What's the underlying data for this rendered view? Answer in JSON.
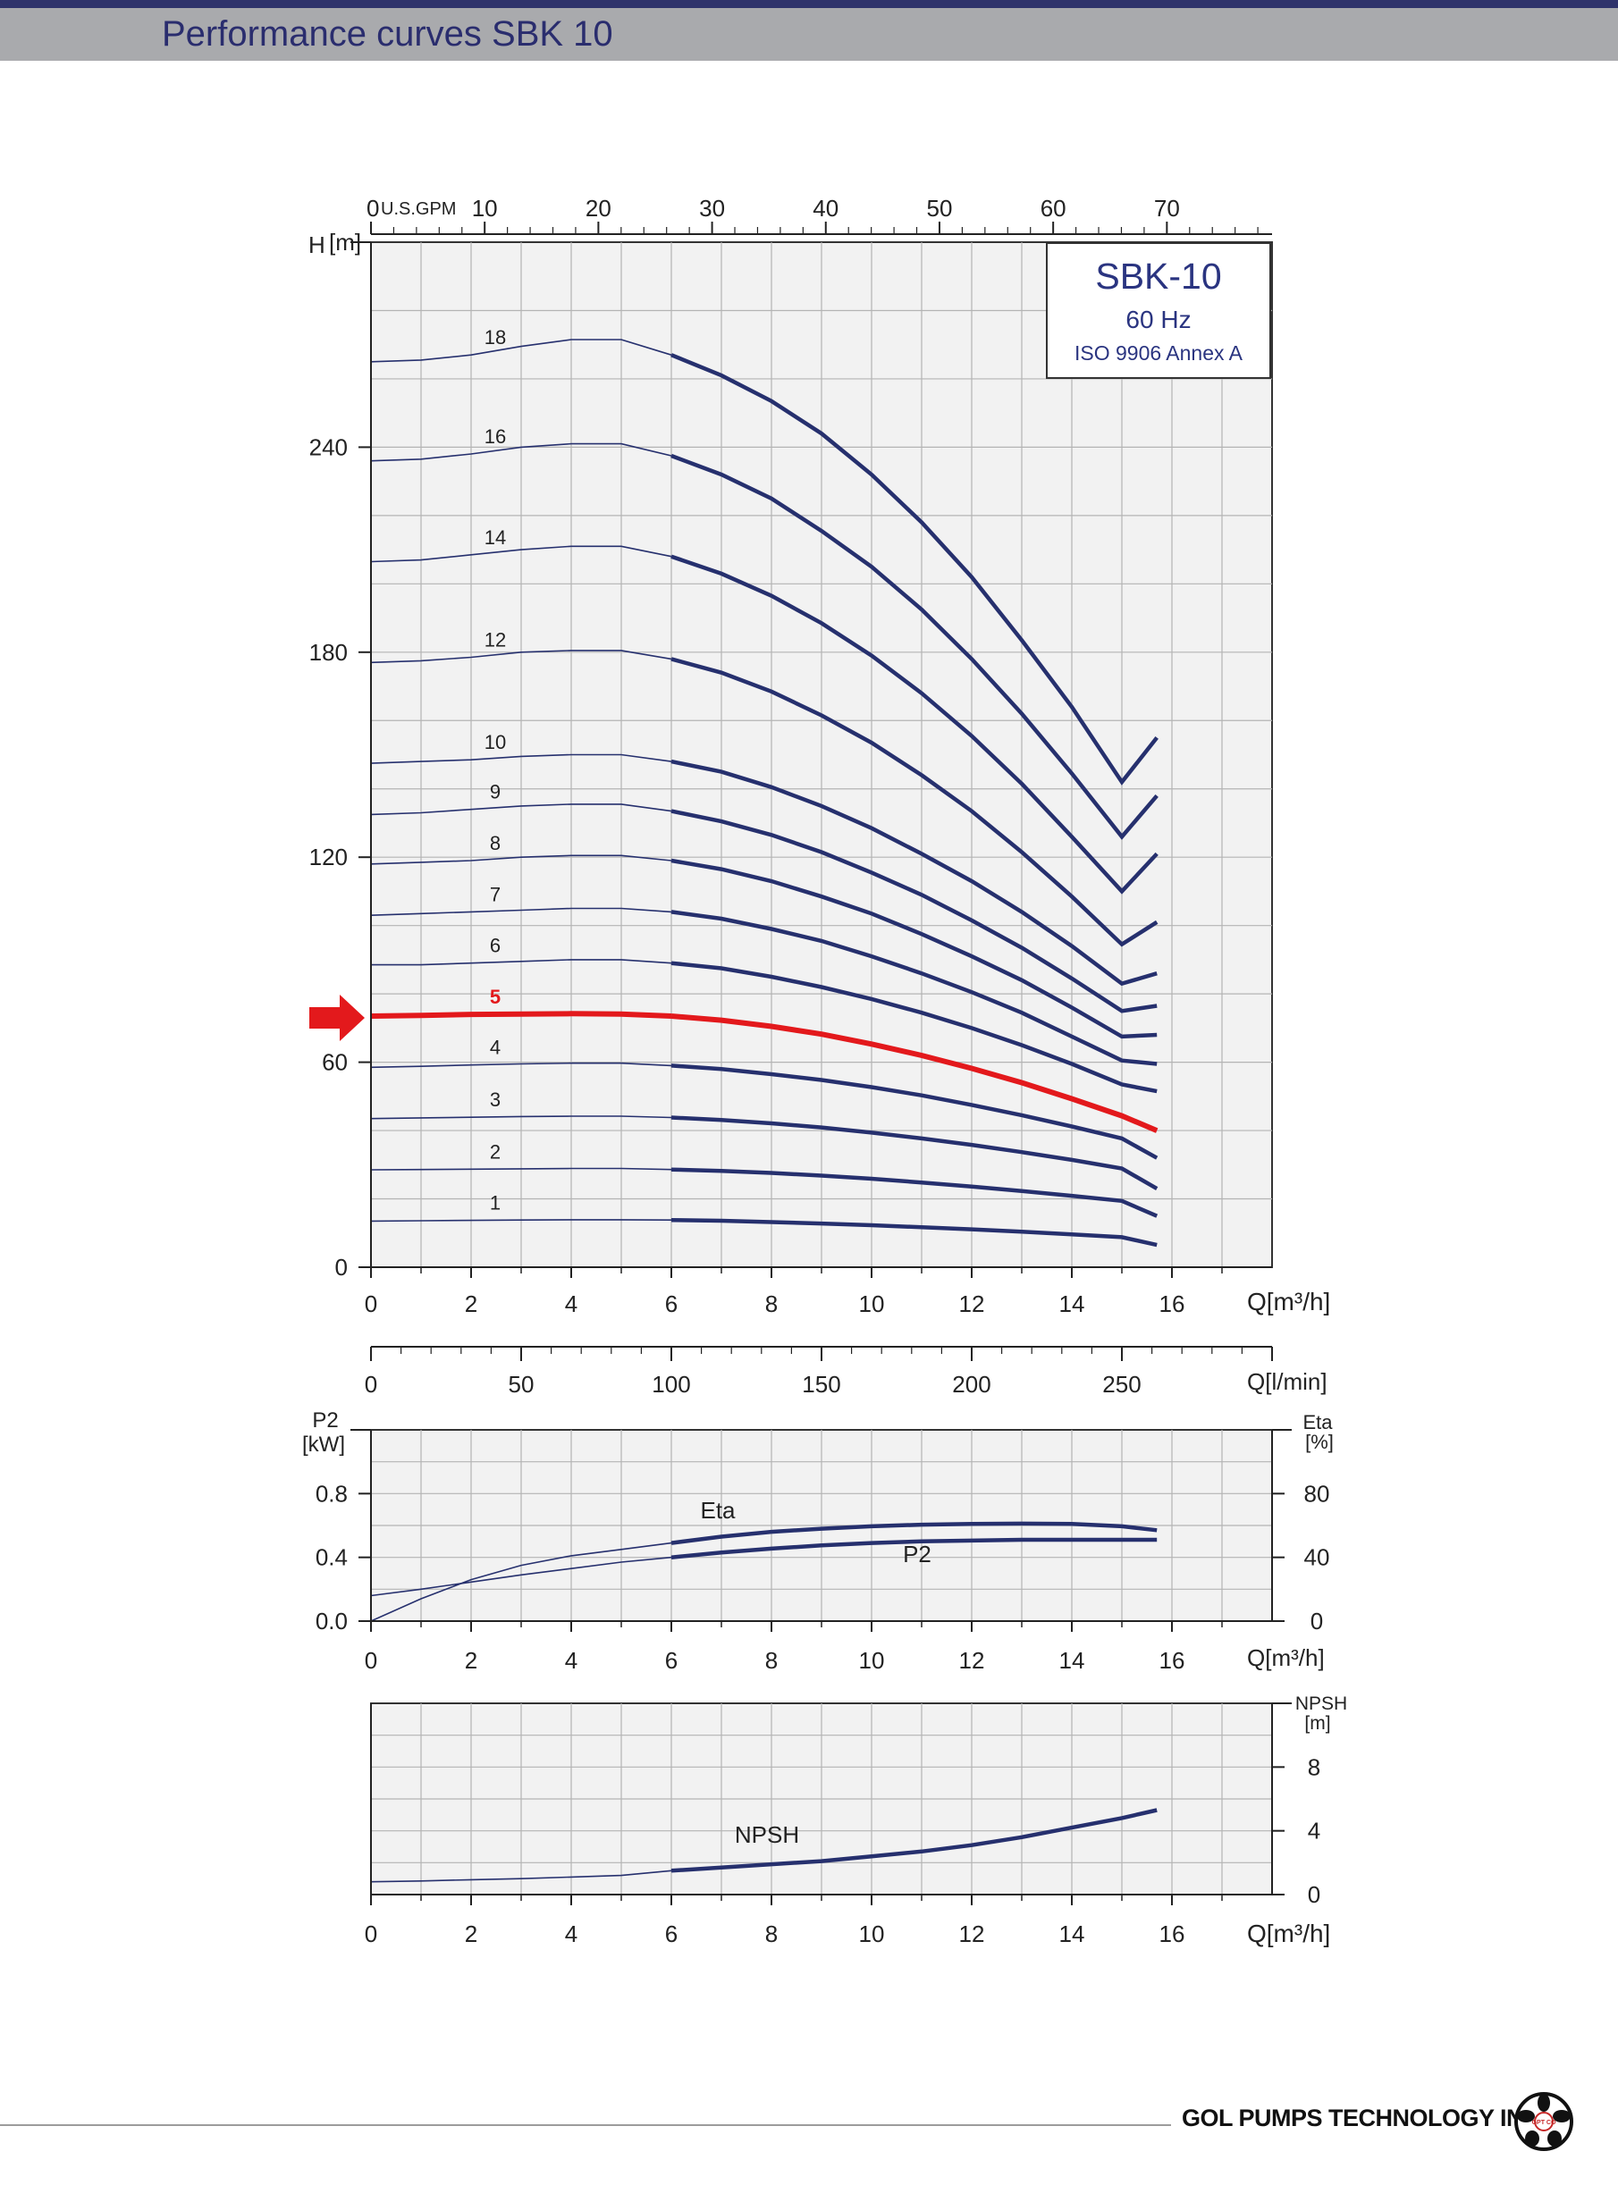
{
  "page": {
    "title": "Performance curves SBK 10"
  },
  "footer": {
    "company": "GOL PUMPS TECHNOLOGY INC",
    "logo_text": "GPT CO"
  },
  "colors": {
    "curve": "#26306e",
    "highlight": "#e3191c",
    "grid": "#b4b4b4",
    "plot_bg": "#f2f2f2",
    "text": "#222222",
    "legend_text": "#2a3480"
  },
  "chart_data": [
    {
      "type": "line",
      "legend": {
        "title": "SBK-10",
        "frequency": "60 Hz",
        "standard": "ISO 9906 Annex A"
      },
      "x_axis": {
        "label": "Q[m³/h]",
        "range": [
          0,
          18
        ],
        "ticks": [
          0,
          2,
          4,
          6,
          8,
          10,
          12,
          14,
          16
        ],
        "tick_labels": [
          "0",
          "2",
          "4",
          "6",
          "8",
          "10",
          "12",
          "14",
          "16"
        ]
      },
      "x_axis_top": {
        "unit": "U.S.GPM",
        "range": [
          0,
          79.25
        ],
        "ticks": [
          0,
          10,
          20,
          30,
          40,
          50,
          60,
          70
        ],
        "tick_labels": [
          "0",
          "10",
          "20",
          "30",
          "40",
          "50",
          "60",
          "70"
        ]
      },
      "y_axis": {
        "label": "H",
        "unit": "[m]",
        "range": [
          0,
          300
        ],
        "ticks": [
          0,
          60,
          120,
          180,
          240
        ],
        "tick_labels": [
          "0",
          "60",
          "120",
          "180",
          "240"
        ]
      },
      "grid": true,
      "highlight_stage": "5",
      "q": [
        0,
        1,
        2,
        3,
        4,
        5,
        6,
        7,
        8,
        9,
        10,
        11,
        12,
        13,
        14,
        15,
        15.7
      ],
      "operating_range_start": 6,
      "series": [
        {
          "name": "18",
          "values": [
            265,
            265.5,
            267,
            269.5,
            271.5,
            271.5,
            267,
            261,
            253.5,
            244,
            232,
            218,
            202,
            183.5,
            164,
            142,
            155
          ]
        },
        {
          "name": "16",
          "values": [
            236,
            236.5,
            238,
            240,
            241,
            241,
            237.5,
            232,
            225,
            215.5,
            205,
            192.5,
            178,
            162,
            144.5,
            126,
            138
          ]
        },
        {
          "name": "14",
          "values": [
            206.5,
            207,
            208.5,
            210,
            211,
            211,
            208,
            203,
            196.5,
            188.5,
            179,
            168,
            155.5,
            141.5,
            126,
            110,
            121
          ]
        },
        {
          "name": "12",
          "values": [
            177,
            177.5,
            178.5,
            180,
            180.5,
            180.5,
            178,
            174,
            168.5,
            161.5,
            153.5,
            144,
            133.5,
            121.5,
            108.5,
            94.5,
            101
          ]
        },
        {
          "name": "10",
          "values": [
            147.5,
            148,
            148.5,
            149.5,
            150,
            150,
            148,
            145,
            140.5,
            135,
            128.5,
            121,
            113,
            104,
            94,
            83,
            86
          ]
        },
        {
          "name": "9",
          "values": [
            132.5,
            133,
            134,
            135,
            135.5,
            135.5,
            133.5,
            130.5,
            126.5,
            121.5,
            115.5,
            109,
            101.5,
            93.5,
            84.5,
            75,
            76.5
          ]
        },
        {
          "name": "8",
          "values": [
            118,
            118.5,
            119,
            120,
            120.5,
            120.5,
            119,
            116.5,
            113,
            108.5,
            103.5,
            97.5,
            91,
            84,
            76,
            67.5,
            68
          ]
        },
        {
          "name": "7",
          "values": [
            103,
            103.5,
            104,
            104.5,
            105,
            105,
            104,
            102,
            99,
            95.5,
            91,
            86,
            80.5,
            74.5,
            67.5,
            60.5,
            59.5
          ]
        },
        {
          "name": "6",
          "values": [
            88.5,
            88.5,
            89,
            89.5,
            90,
            90,
            89,
            87.5,
            85,
            82,
            78.5,
            74.5,
            70,
            65,
            59.5,
            53.5,
            51.5
          ]
        },
        {
          "name": "5",
          "values": [
            73.5,
            73.7,
            74,
            74.1,
            74.2,
            74.1,
            73.5,
            72.3,
            70.5,
            68.2,
            65.3,
            62,
            58.2,
            54,
            49.3,
            44.3,
            40
          ]
        },
        {
          "name": "4",
          "values": [
            58.5,
            58.8,
            59.2,
            59.5,
            59.7,
            59.7,
            59,
            58,
            56.5,
            54.8,
            52.7,
            50.3,
            47.5,
            44.5,
            41.2,
            37.7,
            32
          ]
        },
        {
          "name": "3",
          "values": [
            43.5,
            43.7,
            43.9,
            44.1,
            44.2,
            44.2,
            43.8,
            43.1,
            42.1,
            40.9,
            39.4,
            37.7,
            35.8,
            33.7,
            31.4,
            28.9,
            23
          ]
        },
        {
          "name": "2",
          "values": [
            28.5,
            28.6,
            28.7,
            28.8,
            28.9,
            28.9,
            28.6,
            28.2,
            27.6,
            26.8,
            25.9,
            24.8,
            23.6,
            22.3,
            20.9,
            19.4,
            15
          ]
        },
        {
          "name": "1",
          "values": [
            13.5,
            13.6,
            13.7,
            13.8,
            13.9,
            13.9,
            13.8,
            13.6,
            13.2,
            12.8,
            12.3,
            11.7,
            11.1,
            10.4,
            9.6,
            8.8,
            6.5
          ]
        }
      ]
    },
    {
      "type": "line",
      "x_axis": {
        "label": "Q[m³/h]",
        "range": [
          0,
          18
        ],
        "ticks": [
          0,
          2,
          4,
          6,
          8,
          10,
          12,
          14,
          16
        ],
        "tick_labels": [
          "0",
          "2",
          "4",
          "6",
          "8",
          "10",
          "12",
          "14",
          "16"
        ]
      },
      "x_axis_top": {
        "label": "Q[l/min]",
        "range": [
          0,
          300
        ],
        "ticks": [
          0,
          50,
          100,
          150,
          200,
          250
        ],
        "tick_labels": [
          "0",
          "50",
          "100",
          "150",
          "200",
          "250"
        ]
      },
      "y_axis_left": {
        "label": "P2",
        "unit": "[kW]",
        "range": [
          0,
          1.2
        ],
        "ticks": [
          0,
          0.4,
          0.8
        ],
        "tick_labels": [
          "0.0",
          "0.4",
          "0.8"
        ]
      },
      "y_axis_right": {
        "label": "Eta",
        "unit": "[%]",
        "range": [
          0,
          120
        ],
        "ticks": [
          0,
          40,
          80
        ],
        "tick_labels": [
          "0",
          "40",
          "80"
        ]
      },
      "grid": true,
      "operating_range_start": 6,
      "series": [
        {
          "name": "Eta",
          "axis": "right",
          "x": [
            0,
            1,
            2,
            3,
            4,
            5,
            6,
            7,
            8,
            9,
            10,
            11,
            12,
            13,
            14,
            15,
            15.7
          ],
          "values": [
            0,
            14,
            26,
            35,
            41,
            45,
            49,
            53,
            56,
            58,
            59.5,
            60.5,
            61,
            61.2,
            61,
            59.5,
            57
          ]
        },
        {
          "name": "P2",
          "axis": "left",
          "x": [
            0,
            1,
            2,
            3,
            4,
            5,
            6,
            7,
            8,
            9,
            10,
            11,
            12,
            13,
            14,
            15,
            15.7
          ],
          "values": [
            0.16,
            0.2,
            0.245,
            0.29,
            0.33,
            0.37,
            0.4,
            0.43,
            0.455,
            0.475,
            0.49,
            0.5,
            0.505,
            0.51,
            0.51,
            0.51,
            0.51
          ]
        }
      ]
    },
    {
      "type": "line",
      "x_axis": {
        "label": "Q[m³/h]",
        "range": [
          0,
          18
        ],
        "ticks": [
          0,
          2,
          4,
          6,
          8,
          10,
          12,
          14,
          16
        ],
        "tick_labels": [
          "0",
          "2",
          "4",
          "6",
          "8",
          "10",
          "12",
          "14",
          "16"
        ]
      },
      "y_axis_right": {
        "label": "NPSH",
        "unit": "[m]",
        "range": [
          0,
          12
        ],
        "ticks": [
          0,
          4,
          8
        ],
        "tick_labels": [
          "0",
          "4",
          "8"
        ]
      },
      "grid": true,
      "operating_range_start": 6,
      "series": [
        {
          "name": "NPSH",
          "x": [
            0,
            1,
            2,
            3,
            4,
            5,
            6,
            7,
            8,
            9,
            10,
            11,
            12,
            13,
            14,
            15,
            15.7
          ],
          "values": [
            0.8,
            0.85,
            0.93,
            1.0,
            1.1,
            1.2,
            1.5,
            1.7,
            1.9,
            2.1,
            2.4,
            2.7,
            3.1,
            3.6,
            4.2,
            4.8,
            5.3
          ]
        }
      ]
    }
  ]
}
